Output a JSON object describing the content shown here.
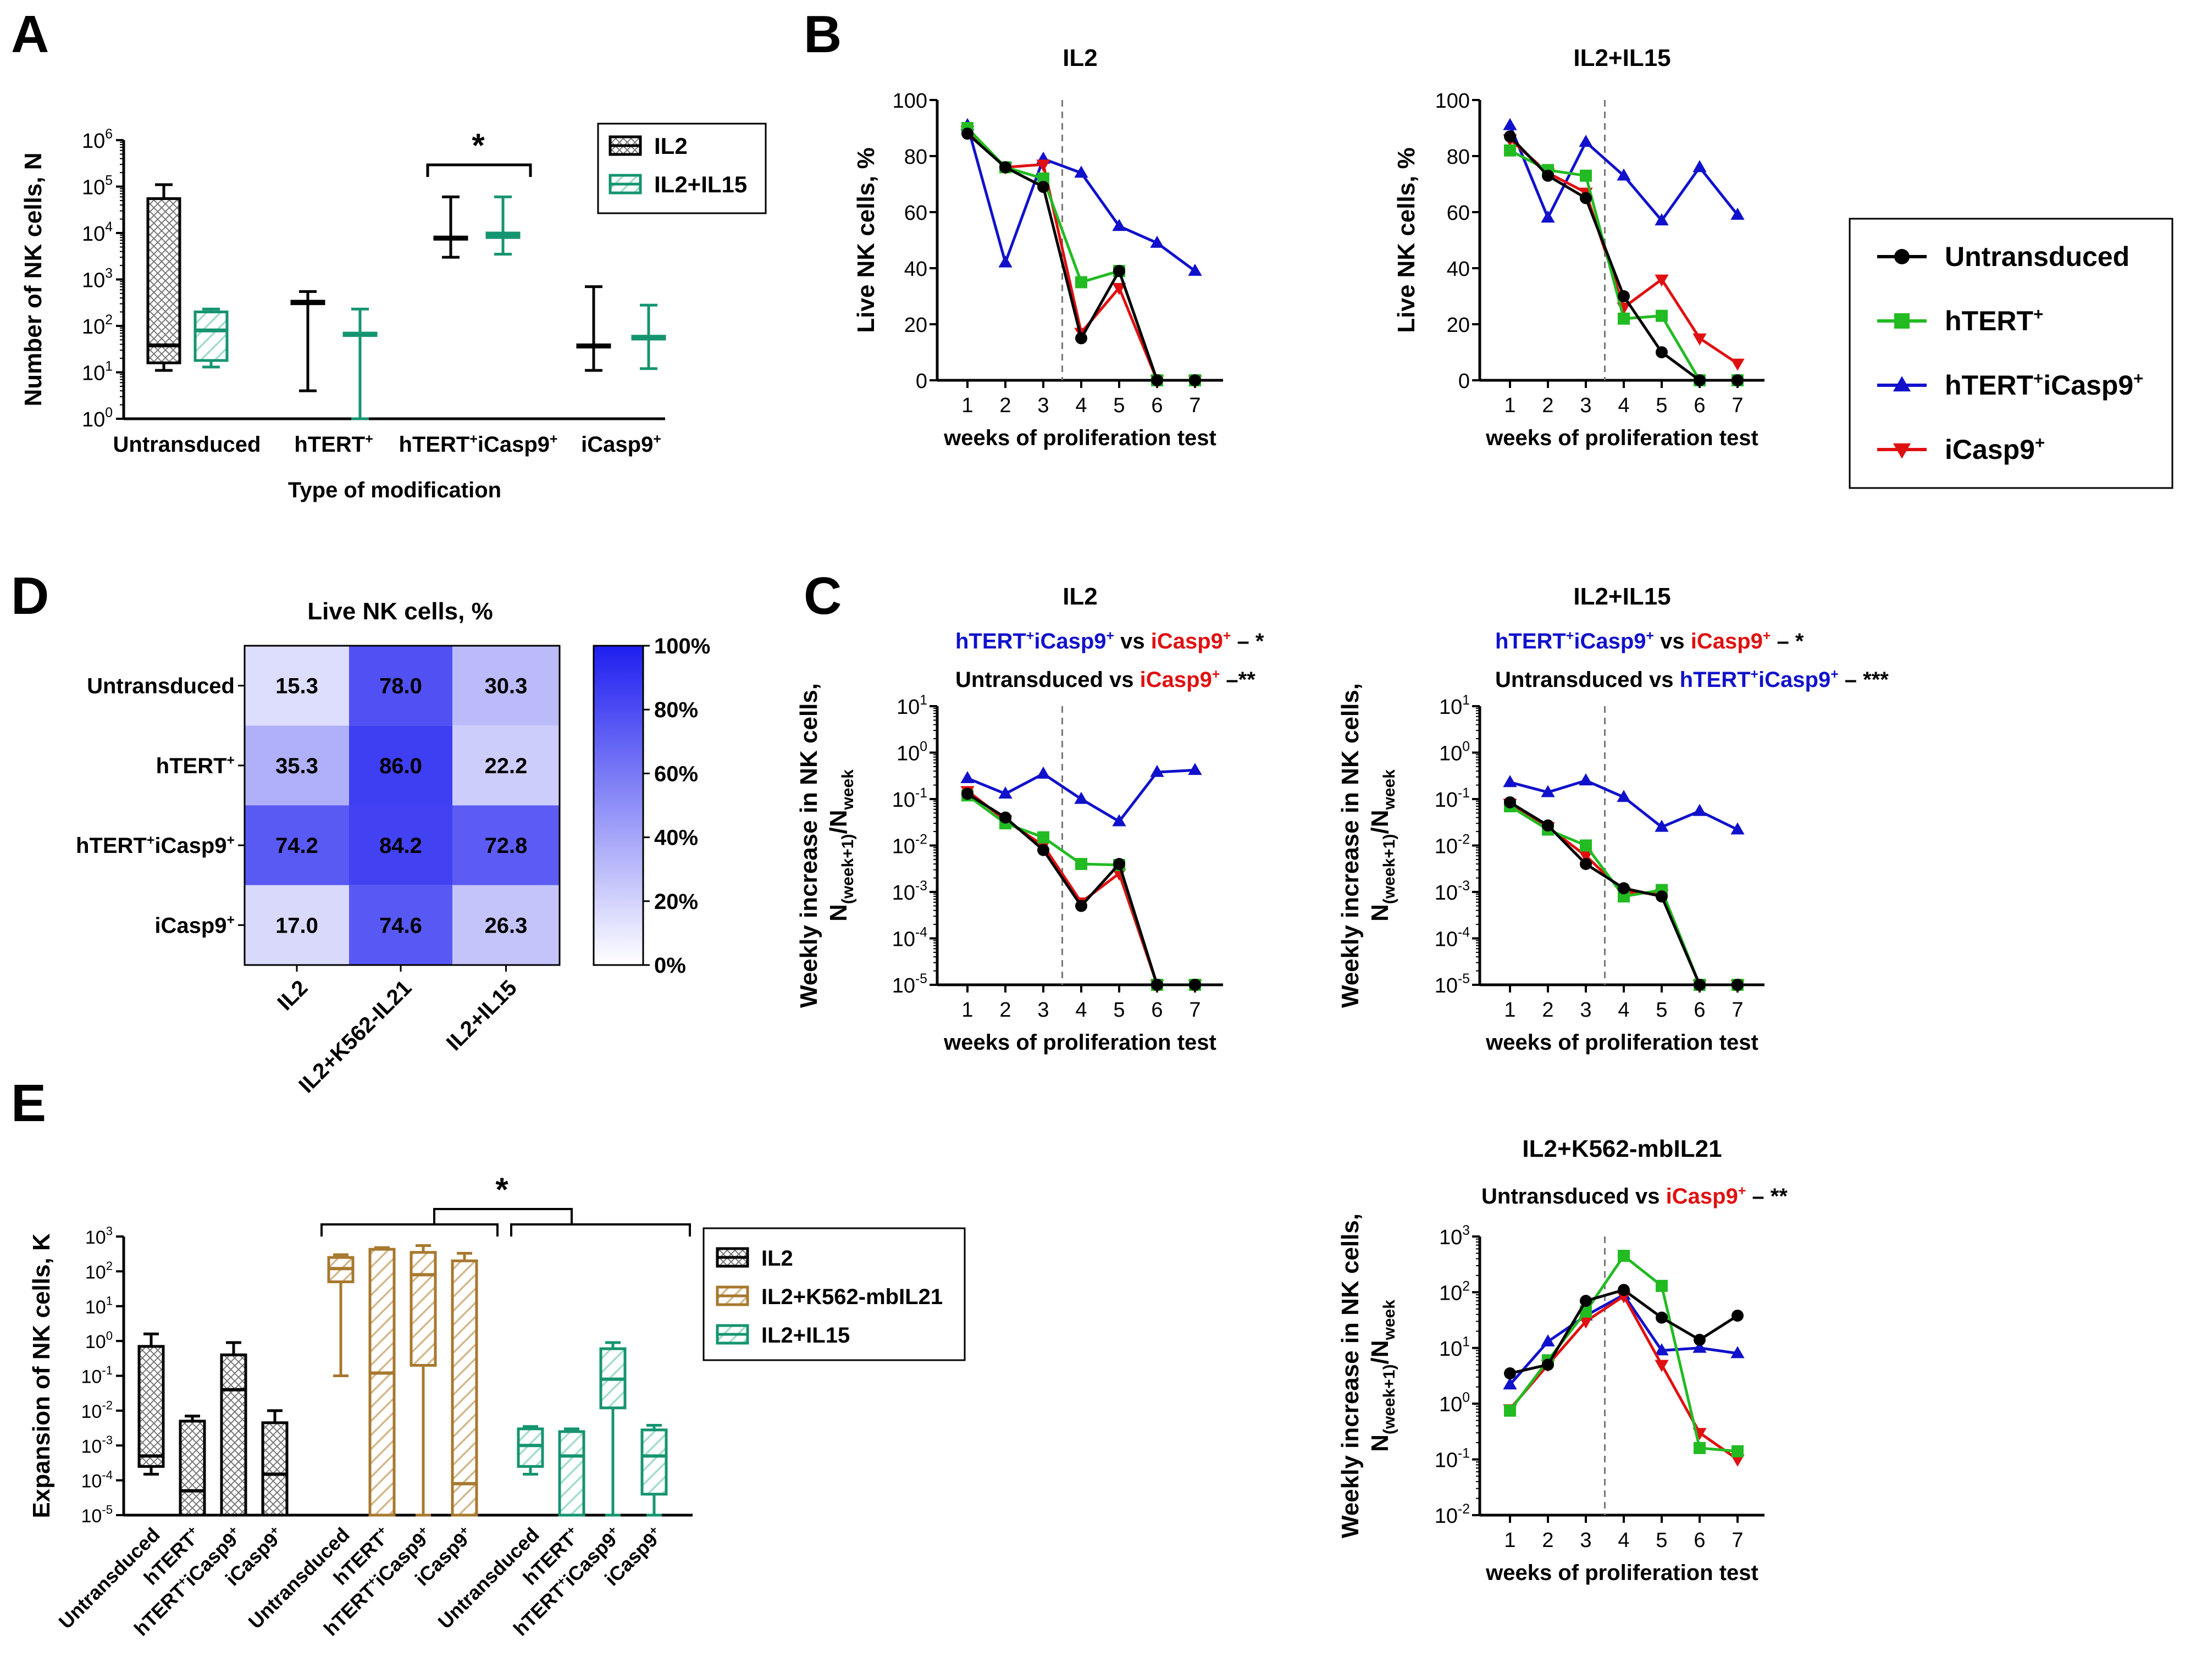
{
  "colors": {
    "untransduced": "#000000",
    "htert": "#22bb22",
    "htert_icasp9": "#1111cc",
    "icasp9": "#e01010",
    "il2_crosshatch": "#000000",
    "il15_teal": "#159470",
    "k562_brown": "#a7782e",
    "heatmap_max": "#1f1ff0",
    "heatmap_min": "#ffffff"
  },
  "chart_data": [
    {
      "panel": "A",
      "type": "box",
      "ylabel": "Number of NK cells, N",
      "xlabel": "Type of modification",
      "yscale": "log",
      "ylim_exp": [
        0,
        6
      ],
      "y_ticks": [
        "10",
        "10",
        "10",
        "10",
        "10",
        "10",
        "10"
      ],
      "y_tick_exps": [
        "0",
        "1",
        "2",
        "3",
        "4",
        "5",
        "6"
      ],
      "categories": [
        "Untransduced",
        "hTERT",
        "hTERTiCasp9",
        "iCasp9"
      ],
      "category_labels": [
        {
          "text": "Untransduced"
        },
        {
          "parts": [
            "hTERT",
            "+"
          ]
        },
        {
          "parts": [
            "hTERT",
            "+",
            "iCasp9",
            "+"
          ]
        },
        {
          "parts": [
            "iCasp9",
            "+"
          ]
        }
      ],
      "legend": [
        "IL2",
        "IL2+IL15"
      ],
      "significance": "*",
      "series": [
        {
          "name": "IL2",
          "boxes": [
            {
              "min": 11,
              "q1": 16,
              "median": 38,
              "q3": 55000,
              "max": 110000
            },
            {
              "min": 4,
              "q1": 300,
              "median": 320,
              "q3": 340,
              "max": 550
            },
            {
              "min": 3000,
              "q1": 7500,
              "median": 7800,
              "q3": 8200,
              "max": 60000
            },
            {
              "min": 11,
              "q1": 35,
              "median": 37,
              "q3": 39,
              "max": 700
            }
          ]
        },
        {
          "name": "IL2+IL15",
          "boxes": [
            {
              "min": 13,
              "q1": 18,
              "median": 80,
              "q3": 200,
              "max": 230
            },
            {
              "min": 1,
              "q1": 62,
              "median": 65,
              "q3": 70,
              "max": 230
            },
            {
              "min": 3500,
              "q1": 8000,
              "median": 8500,
              "q3": 10000,
              "max": 60000
            },
            {
              "min": 12,
              "q1": 52,
              "median": 55,
              "q3": 60,
              "max": 280
            }
          ]
        }
      ]
    },
    {
      "panel": "B",
      "type": "line",
      "title": "IL2",
      "xlabel": "weeks of proliferation test",
      "ylabel": "Live NK cells, %",
      "x": [
        1,
        2,
        3,
        4,
        5,
        6,
        7
      ],
      "ylim": [
        0,
        100
      ],
      "y_ticks": [
        "0",
        "20",
        "40",
        "60",
        "80",
        "100"
      ],
      "series": [
        {
          "name": "Untransduced",
          "values": [
            88,
            76,
            69,
            15,
            39,
            0,
            0
          ]
        },
        {
          "name": "hTERT",
          "values": [
            90,
            76,
            72,
            35,
            39,
            0,
            0
          ]
        },
        {
          "name": "hTERTiCasp9",
          "values": [
            91,
            42,
            79,
            74,
            55,
            49,
            39
          ]
        },
        {
          "name": "iCasp9",
          "values": [
            89,
            76,
            77,
            17,
            33,
            0,
            0
          ]
        }
      ]
    },
    {
      "panel": "B",
      "type": "line",
      "title": "IL2+IL15",
      "xlabel": "weeks of proliferation test",
      "ylabel": "Live NK cells, %",
      "x": [
        1,
        2,
        3,
        4,
        5,
        6,
        7
      ],
      "ylim": [
        0,
        100
      ],
      "y_ticks": [
        "0",
        "20",
        "40",
        "60",
        "80",
        "100"
      ],
      "series": [
        {
          "name": "Untransduced",
          "values": [
            87,
            73,
            65,
            30,
            10,
            0,
            0
          ]
        },
        {
          "name": "hTERT",
          "values": [
            82,
            75,
            73,
            22,
            23,
            0,
            0
          ]
        },
        {
          "name": "hTERTiCasp9",
          "values": [
            91,
            58,
            85,
            73,
            57,
            76,
            59
          ]
        },
        {
          "name": "iCasp9",
          "values": [
            86,
            74,
            67,
            26,
            36,
            15,
            6
          ]
        }
      ]
    },
    {
      "panel": "B-legend",
      "type": "legend",
      "entries": [
        {
          "parts": [
            "Untransduced"
          ]
        },
        {
          "parts": [
            "hTERT",
            "+"
          ]
        },
        {
          "parts": [
            "hTERT",
            "+",
            "iCasp9",
            "+"
          ]
        },
        {
          "parts": [
            "iCasp9",
            "+"
          ]
        }
      ]
    },
    {
      "panel": "C",
      "type": "line",
      "title": "IL2",
      "xlabel": "weeks of proliferation test",
      "ylabel_parts": [
        "Weekly increase in NK cells,",
        "N",
        "(week+1)",
        "/N",
        "week"
      ],
      "yscale": "log",
      "ylim_exp": [
        -5,
        1
      ],
      "y_ticks": [
        "10",
        "10",
        "10",
        "10",
        "10",
        "10",
        "10"
      ],
      "y_tick_exps": [
        "-5",
        "-4",
        "-3",
        "-2",
        "-1",
        "0",
        "1"
      ],
      "x": [
        1,
        2,
        3,
        4,
        5,
        6,
        7
      ],
      "annotations": [
        {
          "parts": [
            "hTERT",
            "+",
            "iCasp9",
            "+",
            " vs ",
            "iCasp9",
            "+",
            " – ",
            "*"
          ]
        },
        {
          "parts": [
            "Untransduced vs ",
            "iCasp9",
            "+",
            " –",
            "**"
          ]
        }
      ],
      "series": [
        {
          "name": "Untransduced",
          "values": [
            0.13,
            0.04,
            0.008,
            0.0005,
            0.004,
            1e-05,
            1e-05
          ]
        },
        {
          "name": "hTERT",
          "values": [
            0.12,
            0.03,
            0.015,
            0.004,
            0.0038,
            1e-05,
            1e-05
          ]
        },
        {
          "name": "hTERTiCasp9",
          "values": [
            0.28,
            0.13,
            0.35,
            0.1,
            0.033,
            0.38,
            0.42
          ]
        },
        {
          "name": "iCasp9",
          "values": [
            0.15,
            0.035,
            0.01,
            0.0006,
            0.0025,
            1e-05,
            1e-05
          ]
        }
      ]
    },
    {
      "panel": "C",
      "type": "line",
      "title": "IL2+IL15",
      "xlabel": "weeks of proliferation test",
      "ylabel_parts": [
        "Weekly increase in NK cells,",
        "N",
        "(week+1)",
        "/N",
        "week"
      ],
      "yscale": "log",
      "ylim_exp": [
        -5,
        1
      ],
      "y_ticks": [
        "10",
        "10",
        "10",
        "10",
        "10",
        "10",
        "10"
      ],
      "y_tick_exps": [
        "-5",
        "-4",
        "-3",
        "-2",
        "-1",
        "0",
        "1"
      ],
      "x": [
        1,
        2,
        3,
        4,
        5,
        6,
        7
      ],
      "annotations": [
        {
          "parts": [
            "hTERT",
            "+",
            "iCasp9",
            "+",
            " vs ",
            "iCasp9",
            "+",
            " – ",
            "*"
          ]
        },
        {
          "parts": [
            "Untransduced vs ",
            "hTERT",
            "+",
            "iCasp9",
            "+",
            " – ",
            "***"
          ]
        }
      ],
      "series": [
        {
          "name": "Untransduced",
          "values": [
            0.085,
            0.027,
            0.004,
            0.0012,
            0.0008,
            1e-05,
            1e-05
          ]
        },
        {
          "name": "hTERT",
          "values": [
            0.07,
            0.022,
            0.01,
            0.0008,
            0.0011,
            1e-05,
            1e-05
          ]
        },
        {
          "name": "hTERTiCasp9",
          "values": [
            0.23,
            0.14,
            0.25,
            0.11,
            0.025,
            0.055,
            0.022
          ]
        },
        {
          "name": "iCasp9",
          "values": [
            0.08,
            0.025,
            0.006,
            0.001,
            0.0009,
            1e-05,
            1e-05
          ]
        }
      ]
    },
    {
      "panel": "C",
      "type": "line",
      "title": "IL2+K562-mbIL21",
      "xlabel": "weeks of proliferation test",
      "ylabel_parts": [
        "Weekly increase in NK cells,",
        "N",
        "(week+1)",
        "/N",
        "week"
      ],
      "yscale": "log",
      "ylim_exp": [
        -2,
        3
      ],
      "y_ticks": [
        "10",
        "10",
        "10",
        "10",
        "10",
        "10"
      ],
      "y_tick_exps": [
        "-2",
        "-1",
        "0",
        "1",
        "2",
        "3"
      ],
      "x": [
        1,
        2,
        3,
        4,
        5,
        6,
        7
      ],
      "annotations": [
        {
          "parts": [
            "Untransduced vs ",
            "iCasp9",
            "+",
            " – ",
            "**"
          ]
        }
      ],
      "series": [
        {
          "name": "Untransduced",
          "values": [
            3.5,
            5,
            70,
            110,
            35,
            14,
            38
          ]
        },
        {
          "name": "hTERT",
          "values": [
            0.75,
            6,
            45,
            450,
            130,
            0.16,
            0.14
          ]
        },
        {
          "name": "hTERTiCasp9",
          "values": [
            2.2,
            13,
            38,
            90,
            9,
            10,
            8
          ]
        },
        {
          "name": "iCasp9",
          "values": [
            0.8,
            5,
            30,
            85,
            5,
            0.3,
            0.1
          ]
        }
      ]
    },
    {
      "panel": "D",
      "type": "heatmap",
      "title": "Live NK cells, %",
      "rows": [
        {
          "parts": [
            "Untransduced"
          ]
        },
        {
          "parts": [
            "hTERT",
            "+"
          ]
        },
        {
          "parts": [
            "hTERT",
            "+",
            "iCasp9",
            "+"
          ]
        },
        {
          "parts": [
            "iCasp9",
            "+"
          ]
        }
      ],
      "columns": [
        "IL2",
        "IL2+K562-IL21",
        "IL2+IL15"
      ],
      "values": [
        [
          "15.3",
          "78.0",
          "30.3"
        ],
        [
          "35.3",
          "86.0",
          "22.2"
        ],
        [
          "74.2",
          "84.2",
          "72.8"
        ],
        [
          "17.0",
          "74.6",
          "26.3"
        ]
      ],
      "colorbar_ticks": [
        "100%",
        "80%",
        "60%",
        "40%",
        "20%",
        "0%"
      ],
      "vmin": 0,
      "vmax": 100
    },
    {
      "panel": "E",
      "type": "box",
      "ylabel": "Expansion of NK cells, K",
      "yscale": "log",
      "ylim_exp": [
        -5,
        3
      ],
      "y_ticks": [
        "10",
        "10",
        "10",
        "10",
        "10",
        "10",
        "10",
        "10",
        "10"
      ],
      "y_tick_exps": [
        "-5",
        "-4",
        "-3",
        "-2",
        "-1",
        "0",
        "1",
        "2",
        "3"
      ],
      "legend": [
        "IL2",
        "IL2+K562-mbIL21",
        "IL2+IL15"
      ],
      "significance": "*",
      "category_labels": [
        {
          "parts": [
            "Untransduced"
          ]
        },
        {
          "parts": [
            "hTERT",
            "+"
          ]
        },
        {
          "parts": [
            "hTERT",
            "+",
            "iCasp9",
            "+"
          ]
        },
        {
          "parts": [
            "iCasp9",
            "+"
          ]
        }
      ],
      "groups": [
        {
          "name": "IL2",
          "boxes": [
            {
              "min": 0.00015,
              "q1": 0.00025,
              "median": 0.0005,
              "q3": 0.7,
              "max": 1.6
            },
            {
              "min": 1e-05,
              "q1": 1e-05,
              "median": 5e-05,
              "q3": 0.005,
              "max": 0.007
            },
            {
              "min": 1e-05,
              "q1": 1e-05,
              "median": 0.04,
              "q3": 0.4,
              "max": 0.9
            },
            {
              "min": 1e-05,
              "q1": 1e-05,
              "median": 0.00015,
              "q3": 0.0045,
              "max": 0.01
            }
          ]
        },
        {
          "name": "IL2+K562-mbIL21",
          "boxes": [
            {
              "min": 0.1,
              "q1": 50,
              "median": 120,
              "q3": 250,
              "max": 300
            },
            {
              "min": 1e-05,
              "q1": 1e-05,
              "median": 0.12,
              "q3": 430,
              "max": 480
            },
            {
              "min": 1e-05,
              "q1": 0.2,
              "median": 80,
              "q3": 350,
              "max": 550
            },
            {
              "min": 1e-05,
              "q1": 1e-05,
              "median": 8e-05,
              "q3": 200,
              "max": 330
            }
          ]
        },
        {
          "name": "IL2+IL15",
          "boxes": [
            {
              "min": 0.00015,
              "q1": 0.00025,
              "median": 0.001,
              "q3": 0.003,
              "max": 0.0035
            },
            {
              "min": 1e-05,
              "q1": 1e-05,
              "median": 0.0005,
              "q3": 0.0025,
              "max": 0.003
            },
            {
              "min": 1e-05,
              "q1": 0.012,
              "median": 0.08,
              "q3": 0.6,
              "max": 0.9
            },
            {
              "min": 1e-05,
              "q1": 4e-05,
              "median": 0.0005,
              "q3": 0.0028,
              "max": 0.0038
            }
          ]
        }
      ]
    }
  ],
  "panel_labels": [
    "A",
    "B",
    "C",
    "D",
    "E"
  ]
}
